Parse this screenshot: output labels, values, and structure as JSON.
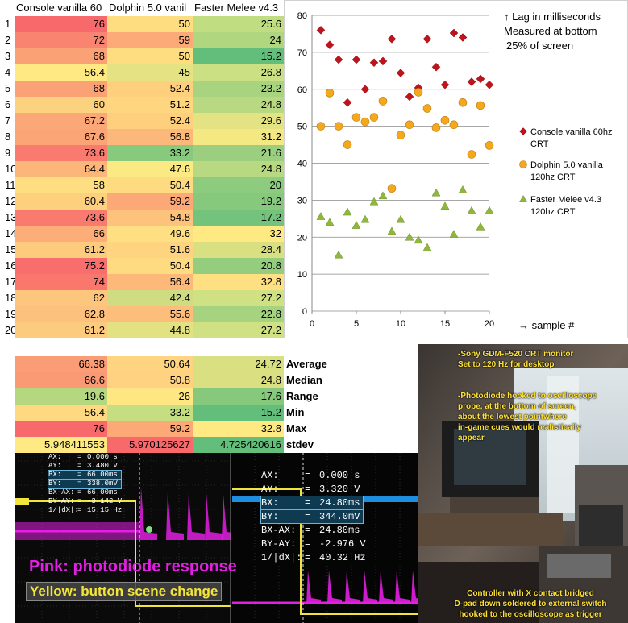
{
  "sheet": {
    "headers": [
      "Console vanilla 60",
      "Dolphin 5.0 vanil",
      "Faster Melee v4.3"
    ],
    "rows": [
      {
        "n": "1",
        "a": "76",
        "b": "50",
        "c": "25.6",
        "ca": "#f8696b",
        "cb": "#fedd81",
        "cc": "#c0dd81"
      },
      {
        "n": "2",
        "a": "72",
        "b": "59",
        "c": "24",
        "ca": "#f98570",
        "cb": "#fcaa77",
        "cc": "#b1d680"
      },
      {
        "n": "3",
        "a": "68",
        "b": "50",
        "c": "15.2",
        "ca": "#fba176",
        "cb": "#fedd81",
        "cc": "#63be7b"
      },
      {
        "n": "4",
        "a": "56.4",
        "b": "45",
        "c": "26.8",
        "ca": "#fee983",
        "cb": "#e4e283",
        "cc": "#cbe082"
      },
      {
        "n": "5",
        "a": "68",
        "b": "52.4",
        "c": "23.2",
        "ca": "#fba176",
        "cb": "#fed07e",
        "cc": "#a9d47f"
      },
      {
        "n": "6",
        "a": "60",
        "b": "51.2",
        "c": "24.8",
        "ca": "#fdd27f",
        "cb": "#fed680",
        "cc": "#b8d881"
      },
      {
        "n": "7",
        "a": "67.2",
        "b": "52.4",
        "c": "29.6",
        "ca": "#fba777",
        "cb": "#fed07e",
        "cc": "#e4e383"
      },
      {
        "n": "8",
        "a": "67.6",
        "b": "56.8",
        "c": "31.2",
        "ca": "#fba476",
        "cb": "#fcb77a",
        "cc": "#f4e883"
      },
      {
        "n": "9",
        "a": "73.6",
        "b": "33.2",
        "c": "21.6",
        "ca": "#f97a6e",
        "cb": "#87c97d",
        "cc": "#9bcf7f"
      },
      {
        "n": "10",
        "a": "64.4",
        "b": "47.6",
        "c": "24.8",
        "ca": "#fcb67a",
        "cb": "#fbe983",
        "cc": "#b8d881"
      },
      {
        "n": "11",
        "a": "58",
        "b": "50.4",
        "c": "20",
        "ca": "#fdde81",
        "cb": "#fedb81",
        "cc": "#8dcb7e"
      },
      {
        "n": "12",
        "a": "60.4",
        "b": "59.2",
        "c": "19.2",
        "ca": "#fdd07e",
        "cb": "#fca977",
        "cc": "#86c97d"
      },
      {
        "n": "13",
        "a": "73.6",
        "b": "54.8",
        "c": "17.2",
        "ca": "#f97a6e",
        "cb": "#fdc37c",
        "cc": "#74c37c"
      },
      {
        "n": "14",
        "a": "66",
        "b": "49.6",
        "c": "32",
        "ca": "#fcad78",
        "cb": "#fee082",
        "cc": "#fee983"
      },
      {
        "n": "15",
        "a": "61.2",
        "b": "51.6",
        "c": "28.4",
        "ca": "#fdcb7e",
        "cb": "#fed480",
        "cc": "#d9e082"
      },
      {
        "n": "16",
        "a": "75.2",
        "b": "50.4",
        "c": "20.8",
        "ca": "#f86e6c",
        "cb": "#fedb81",
        "cc": "#94cd7e"
      },
      {
        "n": "17",
        "a": "74",
        "b": "56.4",
        "c": "32.8",
        "ca": "#f9776d",
        "cb": "#fcb97a",
        "cc": "#fedf81"
      },
      {
        "n": "18",
        "a": "62",
        "b": "42.4",
        "c": "27.2",
        "ca": "#fdc67d",
        "cb": "#cfdc81",
        "cc": "#cfe182"
      },
      {
        "n": "19",
        "a": "62.8",
        "b": "55.6",
        "c": "22.8",
        "ca": "#fcc17c",
        "cb": "#fdbe7b",
        "cc": "#a5d37f"
      },
      {
        "n": "20",
        "a": "61.2",
        "b": "44.8",
        "c": "27.2",
        "ca": "#fdcb7e",
        "cb": "#e2e283",
        "cc": "#cfe182"
      }
    ],
    "stats": [
      {
        "label": "Average",
        "a": "66.38",
        "b": "50.64",
        "c": "24.72",
        "ca": "#fa9c75",
        "cb": "#fed480",
        "cc": "#d9e082"
      },
      {
        "label": "Median",
        "a": "66.6",
        "b": "50.8",
        "c": "24.8",
        "ca": "#fa9a74",
        "cb": "#fed280",
        "cc": "#dae082"
      },
      {
        "label": "Range",
        "a": "19.6",
        "b": "26",
        "c": "17.6",
        "ca": "#b4d780",
        "cb": "#fee683",
        "cc": "#86c97d"
      },
      {
        "label": "Min",
        "a": "56.4",
        "b": "33.2",
        "c": "15.2",
        "ca": "#fed981",
        "cb": "#c6de82",
        "cc": "#63be7b"
      },
      {
        "label": "Max",
        "a": "76",
        "b": "59.2",
        "c": "32.8",
        "ca": "#f8696b",
        "cb": "#fca977",
        "cc": "#fee983"
      },
      {
        "label": "stdev",
        "a": "5.948411553",
        "b": "5.970125627",
        "c": "4.725420616",
        "ca": "#fee983",
        "cb": "#f8696b",
        "cc": "#63be7b"
      }
    ]
  },
  "chart_data": {
    "type": "scatter",
    "x": [
      1,
      2,
      3,
      4,
      5,
      6,
      7,
      8,
      9,
      10,
      11,
      12,
      13,
      14,
      15,
      16,
      17,
      18,
      19,
      20
    ],
    "series": [
      {
        "name": "Console vanilla 60hz CRT",
        "color": "#c0141c",
        "marker": "diamond",
        "values": [
          76,
          72,
          68,
          56.4,
          68,
          60,
          67.2,
          67.6,
          73.6,
          64.4,
          58,
          60.4,
          73.6,
          66,
          61.2,
          75.2,
          74,
          62,
          62.8,
          61.2
        ]
      },
      {
        "name": "Dolphin 5.0 vanilla 120hz CRT",
        "color": "#f6a81c",
        "marker": "circle",
        "values": [
          50,
          59,
          50,
          45,
          52.4,
          51.2,
          52.4,
          56.8,
          33.2,
          47.6,
          50.4,
          59.2,
          54.8,
          49.6,
          51.6,
          50.4,
          56.4,
          42.4,
          55.6,
          44.8
        ]
      },
      {
        "name": "Faster Melee v4.3 120hz CRT",
        "color": "#8fb83a",
        "marker": "triangle",
        "values": [
          25.6,
          24,
          15.2,
          26.8,
          23.2,
          24.8,
          29.6,
          31.2,
          21.6,
          24.8,
          20,
          19.2,
          17.2,
          32,
          28.4,
          20.8,
          32.8,
          27.2,
          22.8,
          27.2
        ]
      }
    ],
    "xlim": [
      0,
      20
    ],
    "ylim": [
      0,
      80
    ],
    "xticks": [
      "0",
      "5",
      "10",
      "15",
      "20"
    ],
    "yticks": [
      "0",
      "10",
      "20",
      "30",
      "40",
      "50",
      "60",
      "70",
      "80"
    ],
    "legend_lines": [
      [
        "Console vanilla 60hz",
        "CRT"
      ],
      [
        "Dolphin 5.0 vanilla",
        "120hz CRT"
      ],
      [
        "Faster Melee v4.3",
        "120hz CRT"
      ]
    ],
    "annotation_lines": [
      "↑ Lag in milliseconds",
      "Measured at bottom",
      "25% of screen"
    ],
    "xlabel": "→ sample #",
    "grid": true,
    "legend_position": "right"
  },
  "scope": {
    "small": [
      {
        "k": "AX:",
        "v": "0.000 s"
      },
      {
        "k": "AY:",
        "v": "3.480 V"
      },
      {
        "k": "BX:",
        "v": "66.00ms"
      },
      {
        "k": "BY:",
        "v": "338.0mV"
      },
      {
        "k": "BX-AX:",
        "v": "66.00ms"
      },
      {
        "k": "BY-AY:",
        "v": "-3.142 V"
      },
      {
        "k": "1/|dX|:",
        "v": "15.15 Hz"
      }
    ],
    "large": [
      {
        "k": "AX:",
        "v": "0.000 s"
      },
      {
        "k": "AY:",
        "v": "3.320 V"
      },
      {
        "k": "BX:",
        "v": "24.80ms"
      },
      {
        "k": "BY:",
        "v": "344.0mV"
      },
      {
        "k": "BX-AX:",
        "v": "24.80ms"
      },
      {
        "k": "BY-AY:",
        "v": "-2.976 V"
      },
      {
        "k": "1/|dX|:",
        "v": "40.32 Hz"
      }
    ],
    "eq": "=",
    "pink_label": "Pink: photodiode response",
    "yellow_label": "Yellow: button scene change",
    "pink_color": "#e21fe2",
    "yellow_color": "#f2e53a"
  },
  "photo": {
    "note1": [
      "-Sony GDM-F520 CRT monitor",
      "Set to 120 Hz for desktop"
    ],
    "note2": [
      "-Photodiode hooked to oscilloscope",
      "probe, at the bottom of screen,",
      "about the lowest pointwhere",
      "in-game cues would realistically",
      "appear"
    ],
    "note3": [
      "Controller with X contact bridged",
      "D-pad down soldered to external switch",
      "hooked to the oscilloscope as trigger"
    ]
  }
}
